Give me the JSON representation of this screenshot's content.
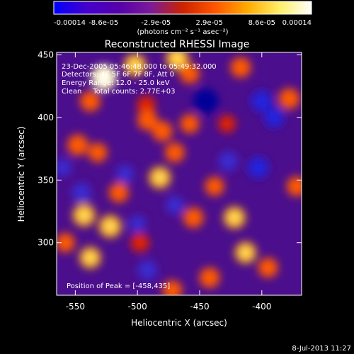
{
  "chart_data": {
    "type": "heatmap",
    "title": "Reconstructed RHESSI Image",
    "xlabel": "Heliocentric X (arcsec)",
    "ylabel": "Heliocentric Y (arcsec)",
    "xlim": [
      -565,
      -368
    ],
    "ylim": [
      258,
      452
    ],
    "x_ticks": [
      -550,
      -500,
      -450,
      -400
    ],
    "y_ticks": [
      300,
      350,
      400,
      450
    ],
    "colorbar": {
      "label": "(photons cm⁻² s⁻¹ asec⁻²)",
      "range": [
        -0.00014,
        0.00014
      ],
      "tick_labels": [
        "-0.00014",
        "-8.6e-05",
        "-2.9e-05",
        "2.9e-05",
        "8.6e-05",
        "0.00014"
      ],
      "tick_values": [
        -0.00014,
        -8.6e-05,
        -2.9e-05,
        2.9e-05,
        8.6e-05,
        0.00014
      ],
      "colormap": [
        "#0000ff",
        "#4400cc",
        "#5500aa",
        "#7a1a99",
        "#cc2200",
        "#ff5500",
        "#ffaa00",
        "#ffee66",
        "#ffffff"
      ]
    },
    "annotations": {
      "time_range": "23-Dec-2005 05:46:48.000 to 05:49:32.000",
      "detectors": "Detectors: 4F 5F 6F 7F 8F, Att 0",
      "energy_range": "Energy Range: 12.0 - 25.0 keV",
      "method_counts": "Clean     Total counts: 2.77E+03",
      "peak": "Position of Peak = [-458,435]"
    },
    "blobs": [
      {
        "x": -527,
        "y": 432,
        "v": 1.0
      },
      {
        "x": -502,
        "y": 442,
        "v": 0.7
      },
      {
        "x": -468,
        "y": 447,
        "v": 0.75
      },
      {
        "x": -417,
        "y": 440,
        "v": 0.55
      },
      {
        "x": -378,
        "y": 415,
        "v": 0.6
      },
      {
        "x": -538,
        "y": 413,
        "v": 0.55
      },
      {
        "x": -493,
        "y": 410,
        "v": 0.4
      },
      {
        "x": -458,
        "y": 435,
        "v": 0.5
      },
      {
        "x": -548,
        "y": 378,
        "v": 0.6
      },
      {
        "x": -532,
        "y": 372,
        "v": 0.45
      },
      {
        "x": -492,
        "y": 398,
        "v": 0.55
      },
      {
        "x": -480,
        "y": 389,
        "v": 0.55
      },
      {
        "x": -458,
        "y": 395,
        "v": 0.45
      },
      {
        "x": -482,
        "y": 352,
        "v": 0.7
      },
      {
        "x": -470,
        "y": 372,
        "v": 0.5
      },
      {
        "x": -515,
        "y": 340,
        "v": 0.5
      },
      {
        "x": -543,
        "y": 322,
        "v": 0.75
      },
      {
        "x": -522,
        "y": 313,
        "v": 0.75
      },
      {
        "x": -538,
        "y": 288,
        "v": 0.65
      },
      {
        "x": -558,
        "y": 300,
        "v": 0.45
      },
      {
        "x": -498,
        "y": 300,
        "v": 0.4
      },
      {
        "x": -455,
        "y": 320,
        "v": 0.55
      },
      {
        "x": -422,
        "y": 320,
        "v": 0.7
      },
      {
        "x": -438,
        "y": 345,
        "v": 0.45
      },
      {
        "x": -413,
        "y": 292,
        "v": 0.65
      },
      {
        "x": -442,
        "y": 272,
        "v": 0.55
      },
      {
        "x": -472,
        "y": 262,
        "v": 0.5
      },
      {
        "x": -395,
        "y": 280,
        "v": 0.5
      },
      {
        "x": -372,
        "y": 345,
        "v": 0.5
      },
      {
        "x": -428,
        "y": 395,
        "v": 0.3
      },
      {
        "x": -445,
        "y": 413,
        "v": -1.0
      },
      {
        "x": -400,
        "y": 413,
        "v": -0.6
      },
      {
        "x": -390,
        "y": 400,
        "v": -0.5
      },
      {
        "x": -403,
        "y": 360,
        "v": -0.6
      },
      {
        "x": -427,
        "y": 365,
        "v": -0.45
      },
      {
        "x": -545,
        "y": 340,
        "v": -0.45
      },
      {
        "x": -510,
        "y": 355,
        "v": -0.35
      },
      {
        "x": -500,
        "y": 315,
        "v": -0.25
      },
      {
        "x": -470,
        "y": 330,
        "v": -0.35
      },
      {
        "x": -492,
        "y": 278,
        "v": -0.45
      },
      {
        "x": -560,
        "y": 360,
        "v": -0.3
      }
    ]
  },
  "footer": {
    "timestamp": "8-Jul-2013 11:27"
  }
}
